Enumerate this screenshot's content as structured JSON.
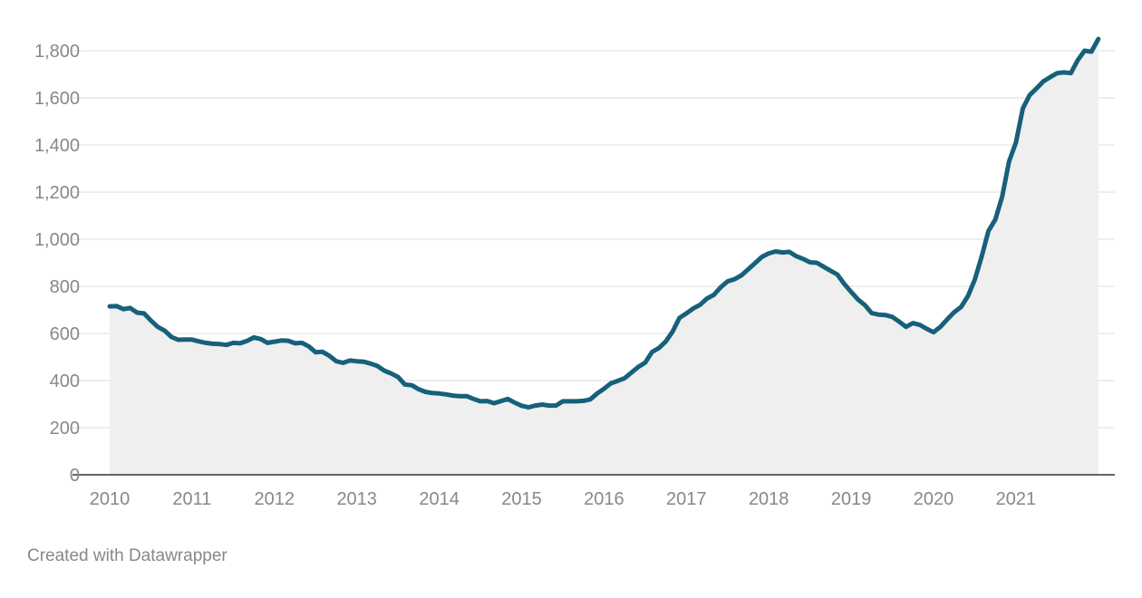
{
  "chart_data": {
    "type": "area",
    "title": "",
    "xlabel": "",
    "ylabel": "",
    "x_ticks": [
      "2010",
      "2011",
      "2012",
      "2013",
      "2014",
      "2015",
      "2016",
      "2017",
      "2018",
      "2019",
      "2020",
      "2021"
    ],
    "y_ticks": [
      "0",
      "200",
      "400",
      "600",
      "800",
      "1,000",
      "1,200",
      "1,400",
      "1,600",
      "1,800"
    ],
    "ylim": [
      0,
      1800
    ],
    "xlim": [
      2010.0,
      2021.917
    ],
    "grid": true,
    "legend": "none",
    "series": [
      {
        "x_start": "2010-01",
        "frequency": "monthly",
        "values": [
          715,
          716,
          703,
          708,
          688,
          685,
          655,
          628,
          612,
          585,
          573,
          574,
          574,
          566,
          560,
          556,
          555,
          551,
          560,
          558,
          568,
          583,
          576,
          560,
          565,
          570,
          569,
          558,
          560,
          545,
          520,
          522,
          505,
          482,
          475,
          485,
          482,
          480,
          472,
          462,
          442,
          430,
          415,
          383,
          380,
          363,
          352,
          347,
          345,
          341,
          336,
          334,
          334,
          322,
          312,
          313,
          304,
          313,
          322,
          306,
          293,
          286,
          294,
          298,
          294,
          294,
          312,
          312,
          312,
          314,
          320,
          345,
          365,
          388,
          399,
          410,
          434,
          458,
          476,
          521,
          538,
          566,
          608,
          666,
          685,
          706,
          722,
          748,
          764,
          796,
          821,
          830,
          846,
          872,
          898,
          925,
          940,
          948,
          944,
          946,
          928,
          916,
          902,
          900,
          883,
          866,
          850,
          810,
          776,
          744,
          720,
          686,
          680,
          678,
          670,
          650,
          628,
          644,
          636,
          620,
          605,
          628,
          660,
          690,
          712,
          758,
          828,
          925,
          1035,
          1084,
          1180,
          1330,
          1410,
          1555,
          1612,
          1640,
          1670,
          1688,
          1705,
          1708,
          1705,
          1760,
          1800,
          1796,
          1850
        ]
      }
    ],
    "colors": {
      "line": "#17607a",
      "area": "#efefef",
      "grid": "#dddddd",
      "axis": "#333333"
    }
  },
  "footer": {
    "credit": "Created with Datawrapper"
  }
}
